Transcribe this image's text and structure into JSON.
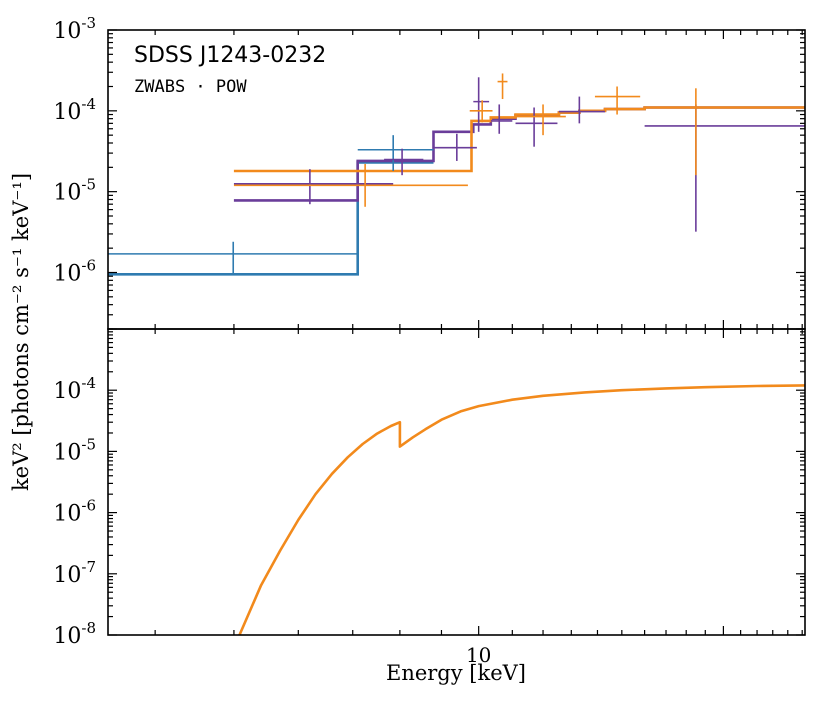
{
  "chart_data": [
    {
      "panel": "top",
      "type": "line",
      "title": "SDSS J1243-0232",
      "subtitle": "ZWABS · POW",
      "xlabel": "Energy [keV]",
      "ylabel": "keV² [photons cm⁻² s⁻¹ keV⁻¹]",
      "xscale": "log",
      "yscale": "log",
      "xlim": [
        3.5,
        25.2
      ],
      "ylim": [
        2e-07,
        0.001
      ],
      "y_ticks": [
        {
          "value": 1e-06,
          "exp": "-6"
        },
        {
          "value": 1e-05,
          "exp": "-5"
        },
        {
          "value": 0.0001,
          "exp": "-4"
        },
        {
          "value": 0.001,
          "exp": "-3"
        }
      ],
      "x_tick_labels": [],
      "colors": {
        "blue": "#2f7bb0",
        "purple": "#6a3d9a",
        "orange": "#f28a1c"
      },
      "data_points": [
        {
          "series": "blue",
          "color": "#2f7bb0",
          "x": 4.99,
          "xlo": 3.5,
          "xhi": 7.1,
          "y": 1.7e-06,
          "ylo": 9.5e-07,
          "yhi": 2.4e-06
        },
        {
          "series": "blue",
          "color": "#2f7bb0",
          "x": 7.85,
          "xlo": 7.1,
          "xhi": 8.8,
          "y": 3.3e-05,
          "ylo": 1.8e-05,
          "yhi": 5e-05
        },
        {
          "series": "purple",
          "color": "#6a3d9a",
          "x": 6.2,
          "xlo": 5.0,
          "xhi": 7.85,
          "y": 1.25e-05,
          "ylo": 7e-06,
          "yhi": 1.9e-05
        },
        {
          "series": "purple",
          "color": "#6a3d9a",
          "x": 8.05,
          "xlo": 7.65,
          "xhi": 8.55,
          "y": 2.5e-05,
          "ylo": 1.6e-05,
          "yhi": 3.4e-05
        },
        {
          "series": "purple",
          "color": "#6a3d9a",
          "x": 9.4,
          "xlo": 8.8,
          "xhi": 9.95,
          "y": 3.5e-05,
          "ylo": 2.4e-05,
          "yhi": 5.2e-05
        },
        {
          "series": "purple",
          "color": "#6a3d9a",
          "x": 10.0,
          "xlo": 9.85,
          "xhi": 10.3,
          "y": 0.00013,
          "ylo": 5.5e-05,
          "yhi": 0.00026
        },
        {
          "series": "purple",
          "color": "#6a3d9a",
          "x": 10.6,
          "xlo": 10.35,
          "xhi": 11.0,
          "y": 7.5e-05,
          "ylo": 5.2e-05,
          "yhi": 0.00012
        },
        {
          "series": "purple",
          "color": "#6a3d9a",
          "x": 11.7,
          "xlo": 11.1,
          "xhi": 12.5,
          "y": 7e-05,
          "ylo": 3.6e-05,
          "yhi": 0.00011
        },
        {
          "series": "purple",
          "color": "#6a3d9a",
          "x": 13.3,
          "xlo": 12.55,
          "xhi": 14.3,
          "y": 9.8e-05,
          "ylo": 7e-05,
          "yhi": 0.00015
        },
        {
          "series": "purple",
          "color": "#6a3d9a",
          "x": 18.5,
          "xlo": 16.0,
          "xhi": 25.2,
          "y": 6.5e-05,
          "ylo": 3.2e-06,
          "yhi": 0.00012
        },
        {
          "series": "orange",
          "color": "#f28a1c",
          "x": 7.25,
          "xlo": 5.0,
          "xhi": 9.7,
          "y": 1.2e-05,
          "ylo": 6.5e-06,
          "yhi": 2.2e-05
        },
        {
          "series": "orange",
          "color": "#f28a1c",
          "x": 10.1,
          "xlo": 9.75,
          "xhi": 10.4,
          "y": 0.0001,
          "ylo": 7.2e-05,
          "yhi": 0.000135
        },
        {
          "series": "orange",
          "color": "#f28a1c",
          "x": 10.7,
          "xlo": 10.55,
          "xhi": 10.85,
          "y": 0.00023,
          "ylo": 0.00014,
          "yhi": 0.00029
        },
        {
          "series": "orange",
          "color": "#f28a1c",
          "x": 12.0,
          "xlo": 11.1,
          "xhi": 12.8,
          "y": 8.5e-05,
          "ylo": 5e-05,
          "yhi": 0.00012
        },
        {
          "series": "orange",
          "color": "#f28a1c",
          "x": 14.8,
          "xlo": 13.9,
          "xhi": 15.8,
          "y": 0.00015,
          "ylo": 9e-05,
          "yhi": 0.0002
        },
        {
          "series": "orange",
          "color": "#f28a1c",
          "x": 18.5,
          "xlo": 16.0,
          "xhi": 25.2,
          "y": 0.00011,
          "ylo": 1.6e-05,
          "yhi": 0.00019
        }
      ],
      "model_steps": [
        {
          "series": "blue",
          "color": "#2f7bb0",
          "edges": [
            3.5,
            7.1,
            8.8
          ],
          "values": [
            9.5e-07,
            2.3e-05
          ]
        },
        {
          "series": "purple",
          "color": "#6a3d9a",
          "edges": [
            5.0,
            7.1,
            7.65,
            8.8,
            9.85,
            10.35,
            11.1,
            12.55,
            13.3,
            14.3,
            16.0,
            25.2
          ],
          "values": [
            7.8e-06,
            2.4e-05,
            2.4e-05,
            5.5e-05,
            6.8e-05,
            8e-05,
            8.8e-05,
            9.5e-05,
            0.0001,
            0.000105,
            0.00011
          ]
        },
        {
          "series": "orange",
          "color": "#f28a1c",
          "edges": [
            5.0,
            9.8,
            10.35,
            11.1,
            12.55,
            13.3,
            14.3,
            16.0,
            25.2
          ],
          "values": [
            1.8e-05,
            7.5e-05,
            8.3e-05,
            9e-05,
            9.5e-05,
            0.0001,
            0.000105,
            0.00011
          ]
        }
      ]
    },
    {
      "panel": "bottom",
      "type": "line",
      "xlabel": "Energy [keV]",
      "xscale": "log",
      "yscale": "log",
      "xlim": [
        3.5,
        25.2
      ],
      "ylim": [
        1e-08,
        0.001
      ],
      "y_ticks": [
        {
          "value": 1e-08,
          "exp": "-8"
        },
        {
          "value": 1e-07,
          "exp": "-7"
        },
        {
          "value": 1e-06,
          "exp": "-6"
        },
        {
          "value": 1e-05,
          "exp": "-5"
        },
        {
          "value": 0.0001,
          "exp": "-4"
        }
      ],
      "x_tick_labels": [
        {
          "value": 10,
          "label": "10"
        }
      ],
      "model_curve": {
        "color": "#f28a1c",
        "x": [
          5.08,
          5.4,
          5.7,
          6.0,
          6.3,
          6.6,
          6.9,
          7.2,
          7.5,
          7.8,
          8.0,
          8.0,
          8.3,
          8.6,
          9.0,
          9.5,
          10.0,
          11.0,
          12.0,
          13.5,
          15.0,
          17.0,
          19.0,
          22.0,
          25.2
        ],
        "y": [
          1e-08,
          6.5e-08,
          2.4e-07,
          7.6e-07,
          2e-06,
          4.3e-06,
          8e-06,
          1.32e-05,
          1.95e-05,
          2.6e-05,
          3e-05,
          1.2e-05,
          1.7e-05,
          2.3e-05,
          3.3e-05,
          4.5e-05,
          5.5e-05,
          7e-05,
          8.1e-05,
          9.2e-05,
          0.0001,
          0.000107,
          0.000112,
          0.000117,
          0.00012
        ]
      }
    }
  ]
}
